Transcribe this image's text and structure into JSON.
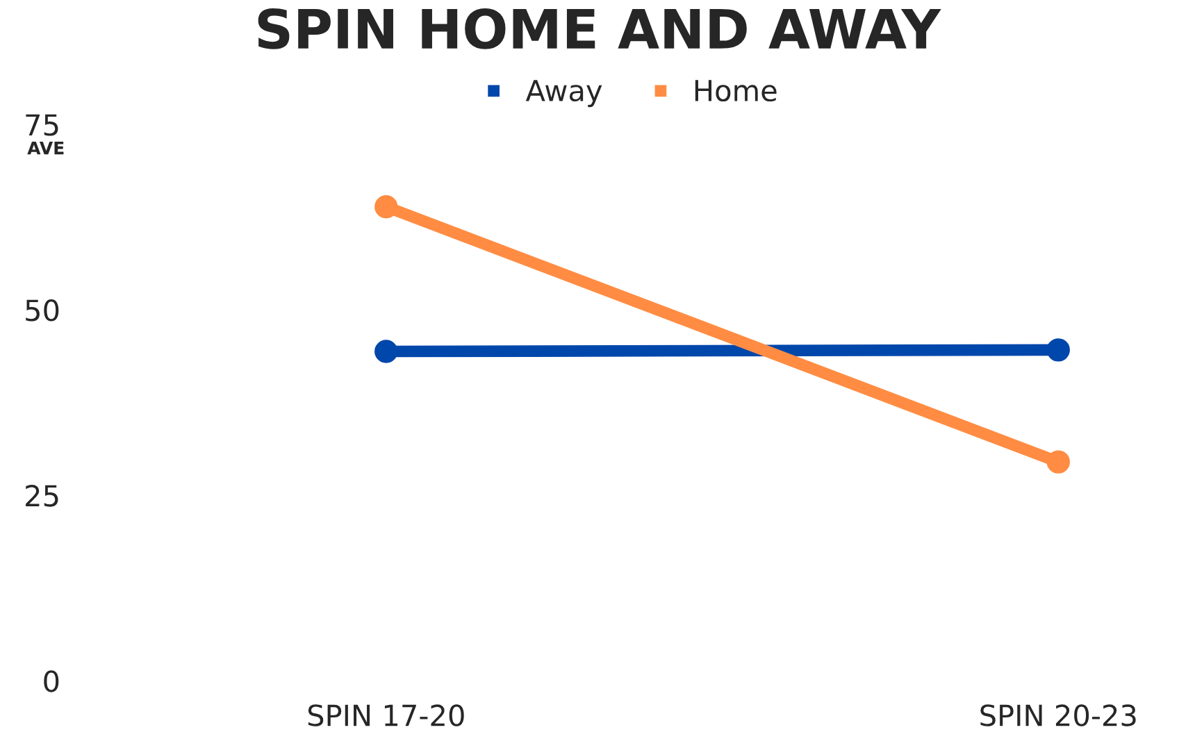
{
  "chart_data": {
    "type": "line",
    "title": "SPIN HOME AND AWAY",
    "ylabel": "AVE",
    "categories": [
      "SPIN 17-20",
      "SPIN 20-23"
    ],
    "series": [
      {
        "name": "Away",
        "color": "#0047ab",
        "values": [
          44.4,
          44.6
        ]
      },
      {
        "name": "Home",
        "color": "#ff8c42",
        "values": [
          63.9,
          29.5
        ]
      }
    ],
    "ylim": [
      0,
      75
    ],
    "yticks": [
      0,
      25,
      50,
      75
    ],
    "grid": false,
    "legend": "top",
    "marker": "circle",
    "line_style": "solid"
  }
}
